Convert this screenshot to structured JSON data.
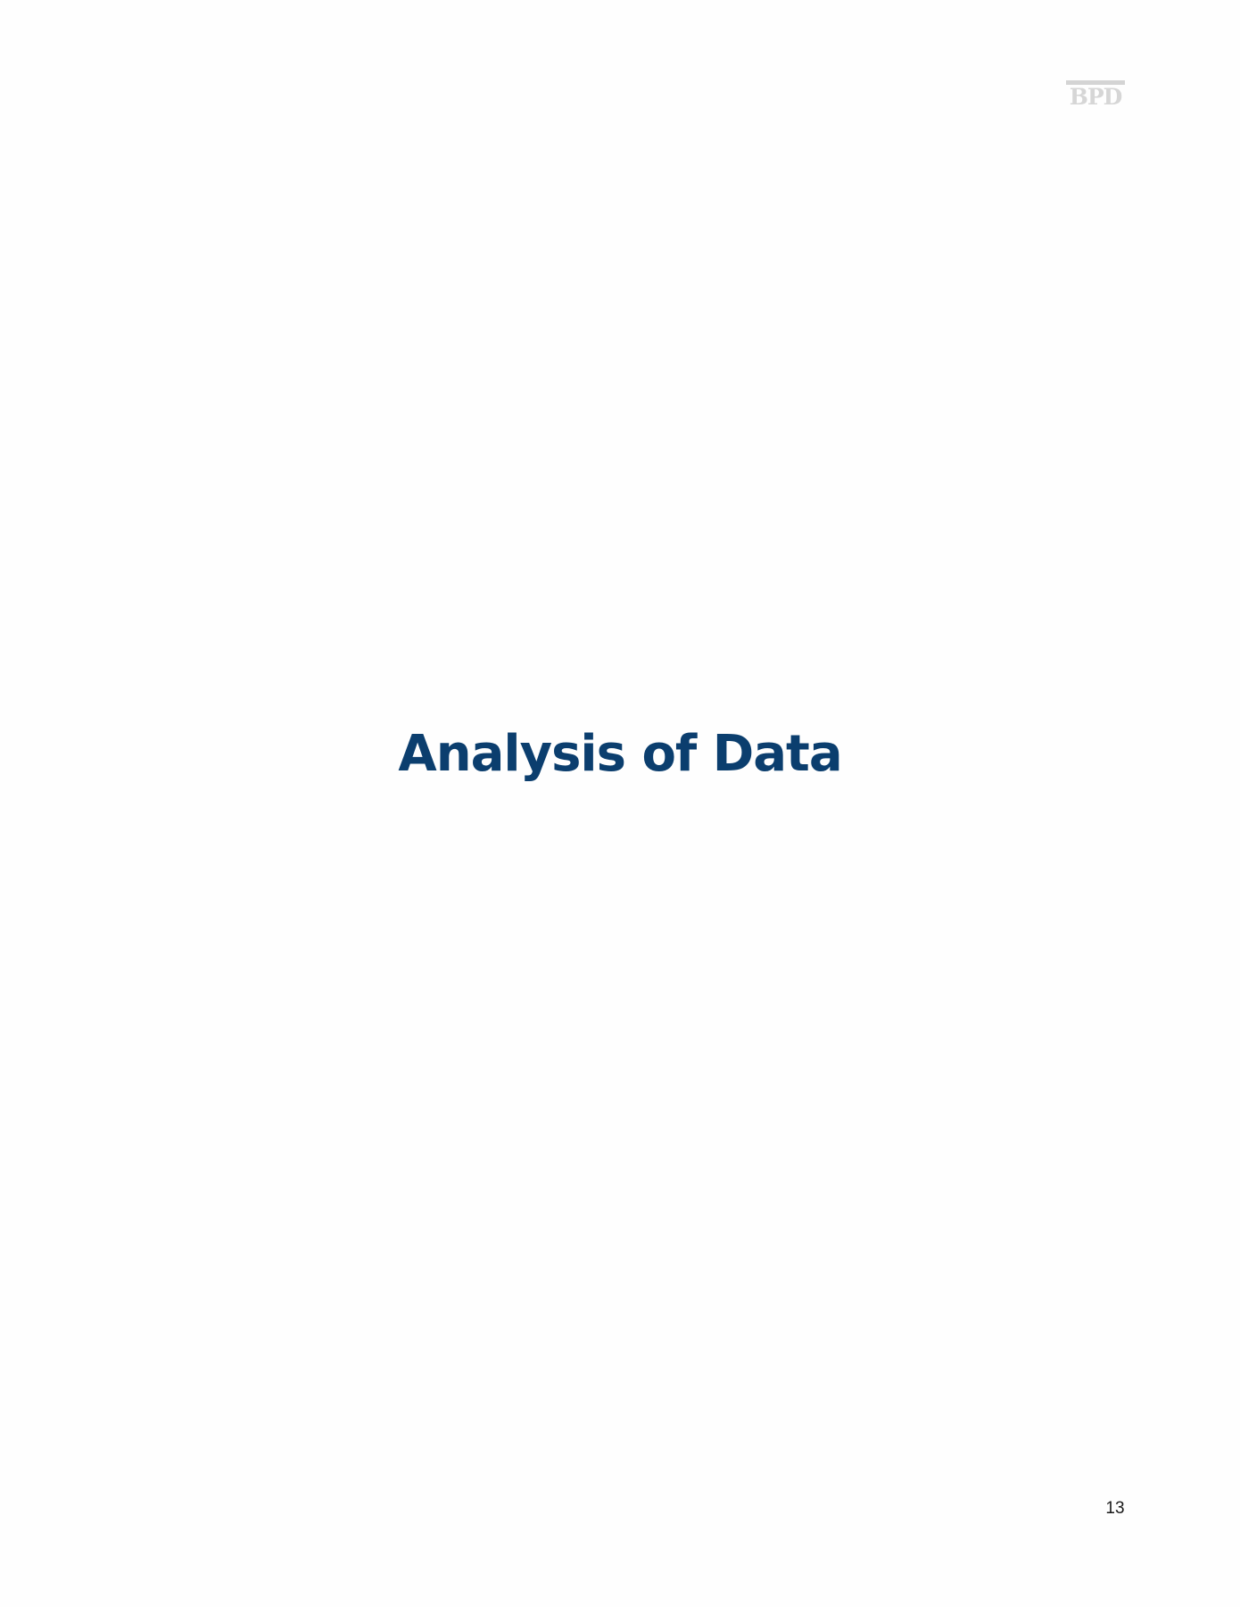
{
  "header": {
    "logo_text": "BPD",
    "logo_color": "#d6d6d6"
  },
  "main": {
    "title": "Analysis of Data",
    "title_color": "#0b3e6e"
  },
  "footer": {
    "page_number": "13"
  }
}
